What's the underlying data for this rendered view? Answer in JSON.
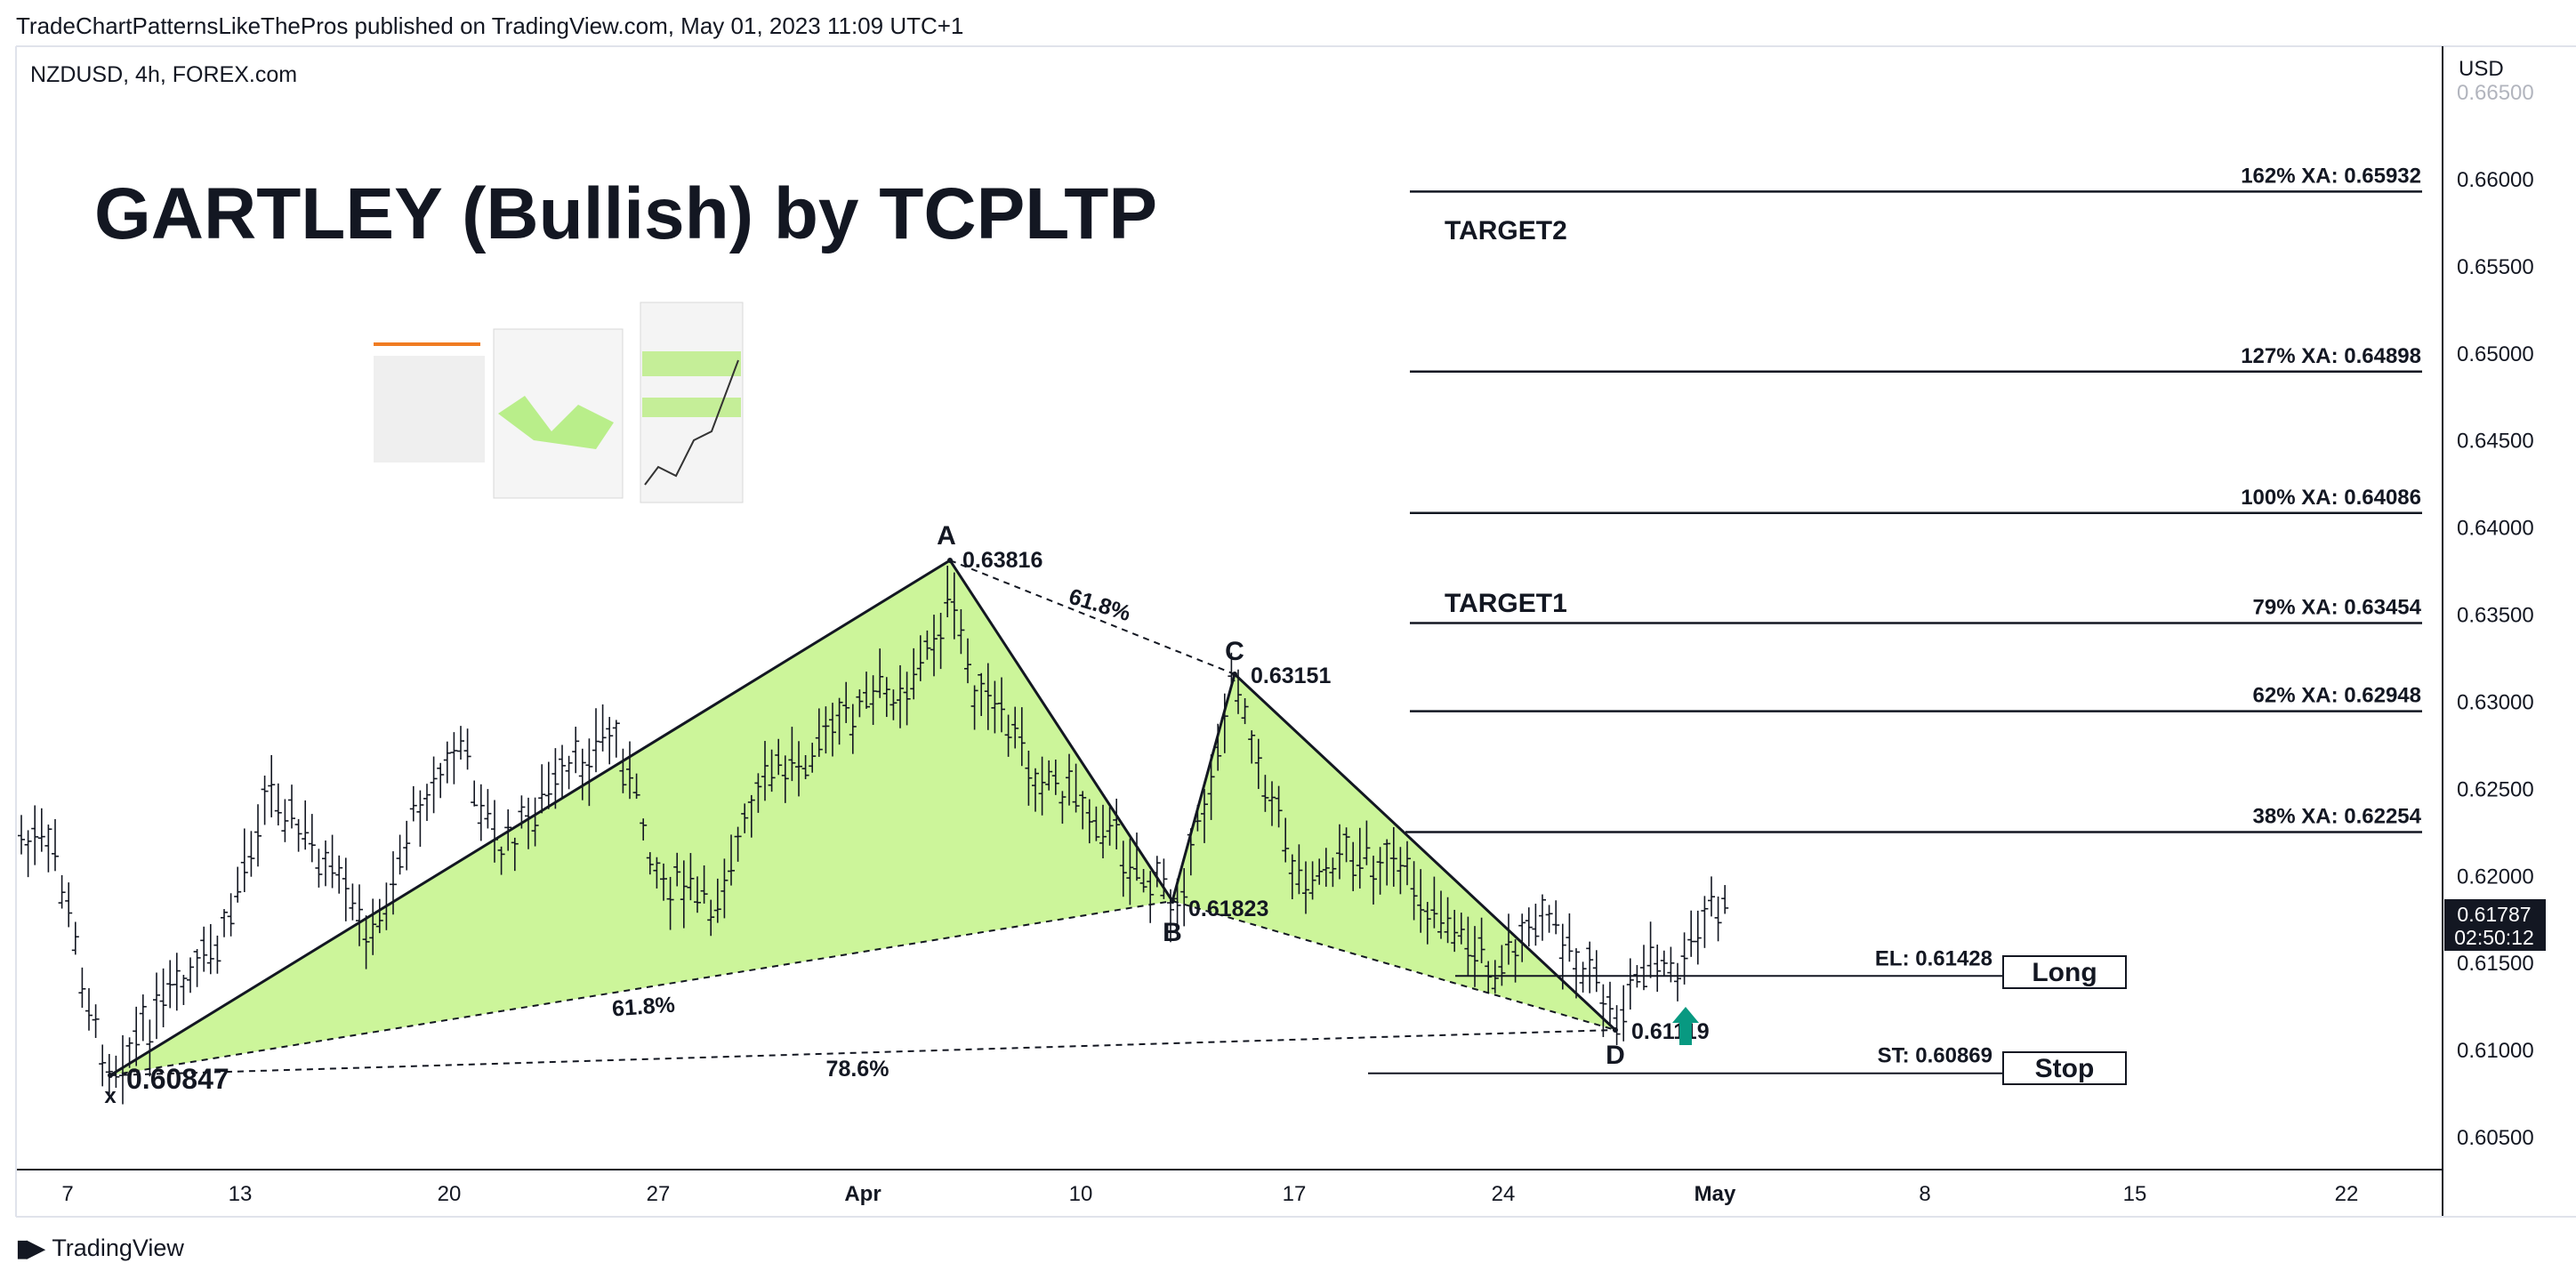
{
  "header": {
    "published_by": "TradeChartPatternsLikeThePros published on TradingView.com, May 01, 2023 11:09 UTC+1",
    "symbol_line": "NZDUSD, 4h, FOREX.com",
    "currency": "USD",
    "brand": "TradingView"
  },
  "chart_data": {
    "type": "candlestick",
    "title": "GARTLEY (Bullish) by TCPLTP",
    "y_axis": {
      "labels": [
        "0.66000",
        "0.65500",
        "0.65000",
        "0.64500",
        "0.64000",
        "0.63500",
        "0.63000",
        "0.62500",
        "0.62000",
        "0.61500",
        "0.61000",
        "0.60500"
      ],
      "values": [
        0.66,
        0.655,
        0.65,
        0.645,
        0.64,
        0.635,
        0.63,
        0.625,
        0.62,
        0.615,
        0.61,
        0.605
      ],
      "range": [
        0.603,
        0.666
      ],
      "partial_top_label": "0.66500"
    },
    "x_axis": {
      "labels": [
        "7",
        "13",
        "20",
        "27",
        "Apr",
        "10",
        "17",
        "24",
        "May",
        "8",
        "15",
        "22"
      ],
      "bold": [
        "Apr",
        "May"
      ]
    },
    "last_price": {
      "value": "0.61787",
      "countdown": "02:50:12"
    },
    "pattern_points": [
      {
        "label": "X",
        "price": 0.60847,
        "price_text": "0.60847",
        "date_idx": 1.5
      },
      {
        "label": "A",
        "price": 0.63816,
        "price_text": "0.63816",
        "date_idx": 28.5
      },
      {
        "label": "B",
        "price": 0.61823,
        "price_text": "0.61823",
        "date_idx": 35.0
      },
      {
        "label": "C",
        "price": 0.63151,
        "price_text": "0.63151",
        "date_idx": 37.0
      },
      {
        "label": "D",
        "price": 0.61119,
        "price_text": "0.61119",
        "date_idx": 52.5
      }
    ],
    "ratio_labels": [
      {
        "text": "61.8%",
        "between": "A-C"
      },
      {
        "text": "61.8%",
        "between": "X-B"
      },
      {
        "text": "78.6%",
        "between": "X-D"
      }
    ],
    "target_levels": [
      {
        "text": "162% XA: 0.65932",
        "value": 0.65932
      },
      {
        "text": "127% XA: 0.64898",
        "value": 0.64898
      },
      {
        "text": "100% XA: 0.64086",
        "value": 0.64086
      },
      {
        "text": "79% XA: 0.63454",
        "value": 0.63454
      },
      {
        "text": "62% XA: 0.62948",
        "value": 0.62948
      },
      {
        "text": "38% XA: 0.62254",
        "value": 0.62254
      }
    ],
    "target_names": [
      {
        "text": "TARGET2",
        "value": 0.6571
      },
      {
        "text": "TARGET1",
        "value": 0.6357
      }
    ],
    "entry": {
      "text": "EL: 0.61428",
      "value": 0.61428,
      "button": "Long"
    },
    "stop": {
      "text": "ST: 0.60869",
      "value": 0.60869,
      "button": "Stop"
    },
    "colors": {
      "pattern_fill": "#ccf59a",
      "candle": "#131722",
      "arrow": "#089981",
      "last_price_bg": "#131722"
    }
  }
}
